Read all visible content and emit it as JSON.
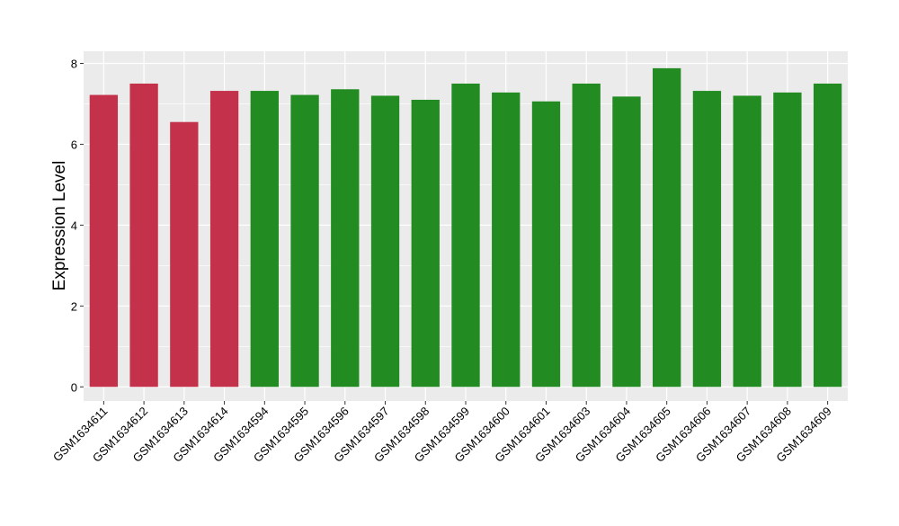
{
  "chart_data": {
    "type": "bar",
    "title": "",
    "xlabel": "",
    "ylabel": "Expression Level",
    "ylim": [
      -0.35,
      8.3
    ],
    "yticks": [
      0,
      2,
      4,
      6,
      8
    ],
    "grid": true,
    "legend": "none",
    "colors": {
      "red": "#c4314b",
      "green": "#228b22",
      "panel": "#ebebeb",
      "grid": "#ffffff"
    },
    "categories": [
      "GSM1634611",
      "GSM1634612",
      "GSM1634613",
      "GSM1634614",
      "GSM1634594",
      "GSM1634595",
      "GSM1634596",
      "GSM1634597",
      "GSM1634598",
      "GSM1634599",
      "GSM1634600",
      "GSM1634601",
      "GSM1634603",
      "GSM1634604",
      "GSM1634605",
      "GSM1634606",
      "GSM1634607",
      "GSM1634608",
      "GSM1634609"
    ],
    "values": [
      7.22,
      7.5,
      6.55,
      7.32,
      7.32,
      7.22,
      7.36,
      7.2,
      7.1,
      7.5,
      7.28,
      7.06,
      7.5,
      7.18,
      7.88,
      7.32,
      7.2,
      7.28,
      7.5
    ],
    "bar_colors": [
      "red",
      "red",
      "red",
      "red",
      "green",
      "green",
      "green",
      "green",
      "green",
      "green",
      "green",
      "green",
      "green",
      "green",
      "green",
      "green",
      "green",
      "green",
      "green"
    ]
  }
}
